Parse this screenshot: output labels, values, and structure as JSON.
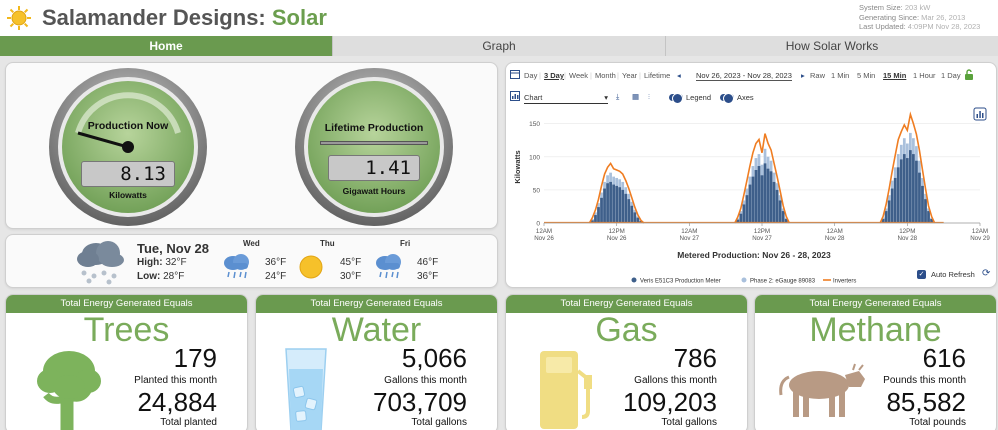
{
  "header": {
    "brand_main": "Salamander Designs:",
    "brand_accent": "Solar",
    "system_size_label": "System Size:",
    "system_size_value": "203 kW",
    "generating_since_label": "Generating Since:",
    "generating_since_value": "Mar 26, 2013",
    "last_updated_label": "Last Updated:",
    "last_updated_value": "4:09PM Nov 28, 2023",
    "icon": "sun-icon"
  },
  "tabs": [
    {
      "label": "Home",
      "active": true
    },
    {
      "label": "Graph",
      "active": false
    },
    {
      "label": "How Solar Works",
      "active": false
    }
  ],
  "gauges": {
    "production": {
      "title": "Production Now",
      "value": "8.13",
      "unit": "Kilowatts"
    },
    "lifetime": {
      "title": "Lifetime Production",
      "value": "1.41",
      "unit": "Gigawatt Hours"
    }
  },
  "weather": {
    "today": {
      "date": "Tue, Nov 28",
      "high_label": "High:",
      "high": "32°F",
      "low_label": "Low:",
      "low": "28°F",
      "icon": "snow-cloud-icon"
    },
    "days": [
      {
        "day": "Wed",
        "high": "36°F",
        "low": "24°F",
        "icon": "rain-cloud-icon"
      },
      {
        "day": "Thu",
        "high": "45°F",
        "low": "30°F",
        "icon": "sun-icon"
      },
      {
        "day": "Fri",
        "high": "46°F",
        "low": "36°F",
        "icon": "rain-cloud-icon"
      }
    ]
  },
  "chart_toolbar": {
    "ranges": [
      "Day",
      "3 Day",
      "Week",
      "Month",
      "Year",
      "Lifetime"
    ],
    "selected_range": "3 Day",
    "date_range": "Nov 26, 2023 - Nov 28, 2023",
    "intervals": [
      "Raw",
      "1 Min",
      "5 Min",
      "15 Min",
      "1 Hour",
      "1 Day"
    ],
    "selected_interval": "15 Min",
    "view_select": "Chart",
    "legend_toggle": "Legend",
    "axes_toggle": "Axes",
    "auto_refresh": "Auto Refresh"
  },
  "chart_data": {
    "type": "area",
    "title": "Metered Production: Nov 26 - 28, 2023",
    "ylabel": "Kilowatts",
    "ylim": [
      0,
      160
    ],
    "y_ticks": [
      0,
      50,
      100,
      150
    ],
    "x_ticks": [
      {
        "l1": "12AM",
        "l2": "Nov 26",
        "h": 0
      },
      {
        "l1": "12PM",
        "l2": "Nov 26",
        "h": 12
      },
      {
        "l1": "12AM",
        "l2": "Nov 27",
        "h": 24
      },
      {
        "l1": "12PM",
        "l2": "Nov 27",
        "h": 36
      },
      {
        "l1": "12AM",
        "l2": "Nov 28",
        "h": 48
      },
      {
        "l1": "12PM",
        "l2": "Nov 28",
        "h": 60
      },
      {
        "l1": "12AM",
        "l2": "Nov 29",
        "h": 72
      }
    ],
    "x_hours": [
      7.5,
      8,
      8.5,
      9,
      9.5,
      10,
      10.5,
      11,
      11.5,
      12,
      12.5,
      13,
      13.5,
      14,
      14.5,
      15,
      15.5,
      16,
      16.5,
      31.5,
      32,
      32.5,
      33,
      33.5,
      34,
      34.5,
      35,
      35.5,
      36,
      36.5,
      37,
      37.5,
      38,
      38.5,
      39,
      39.5,
      40,
      40.5,
      55.5,
      56,
      56.5,
      57,
      57.5,
      58,
      58.5,
      59,
      59.5,
      60,
      60.5,
      61,
      61.5,
      62,
      62.5,
      63,
      63.5,
      64,
      64.5
    ],
    "series": [
      {
        "name": "Veris E51C3 Production Meter",
        "color": "#3e5f8a",
        "values": [
          0,
          4,
          12,
          24,
          38,
          52,
          60,
          62,
          58,
          56,
          54,
          50,
          44,
          36,
          26,
          16,
          8,
          3,
          0,
          0,
          5,
          14,
          28,
          42,
          58,
          70,
          80,
          86,
          72,
          90,
          82,
          78,
          62,
          50,
          34,
          18,
          6,
          0,
          0,
          6,
          18,
          34,
          52,
          68,
          84,
          96,
          104,
          98,
          110,
          104,
          94,
          76,
          56,
          36,
          18,
          6,
          0
        ]
      },
      {
        "name": "Phase 2: eGauge 89083",
        "color": "#a9c0dc",
        "values": [
          0,
          6,
          16,
          30,
          46,
          62,
          72,
          76,
          70,
          68,
          66,
          62,
          54,
          44,
          32,
          20,
          10,
          4,
          0,
          0,
          7,
          18,
          34,
          52,
          70,
          86,
          98,
          104,
          88,
          112,
          100,
          94,
          76,
          60,
          42,
          22,
          8,
          0,
          0,
          8,
          22,
          42,
          64,
          84,
          104,
          118,
          128,
          120,
          136,
          128,
          116,
          94,
          68,
          44,
          22,
          8,
          0
        ]
      },
      {
        "name": "Inverters",
        "color": "#ef7d22",
        "values": [
          0,
          8,
          20,
          36,
          56,
          74,
          84,
          90,
          82,
          80,
          78,
          74,
          64,
          52,
          38,
          24,
          12,
          4,
          0,
          0,
          9,
          22,
          42,
          64,
          86,
          106,
          120,
          126,
          106,
          135,
          120,
          110,
          90,
          70,
          48,
          26,
          10,
          0,
          0,
          10,
          28,
          52,
          78,
          102,
          126,
          138,
          148,
          140,
          164,
          150,
          134,
          110,
          80,
          52,
          26,
          10,
          0
        ]
      }
    ],
    "legend_position": "bottom"
  },
  "cards": [
    {
      "header": "Total Energy Generated Equals",
      "title": "Trees",
      "month_value": "179",
      "month_label": "Planted this month",
      "total_value": "24,884",
      "total_label": "Total planted",
      "icon": "tree-icon"
    },
    {
      "header": "Total Energy Generated Equals",
      "title": "Water",
      "month_value": "5,066",
      "month_label": "Gallons this month",
      "total_value": "703,709",
      "total_label": "Total gallons",
      "icon": "water-glass-icon"
    },
    {
      "header": "Total Energy Generated Equals",
      "title": "Gas",
      "month_value": "786",
      "month_label": "Gallons this month",
      "total_value": "109,203",
      "total_label": "Total gallons",
      "icon": "gas-pump-icon"
    },
    {
      "header": "Total Energy Generated Equals",
      "title": "Methane",
      "month_value": "616",
      "month_label": "Pounds this month",
      "total_value": "85,582",
      "total_label": "Total pounds",
      "icon": "cow-icon"
    }
  ],
  "colors": {
    "brand_green": "#6a9a4f",
    "title_green": "#7aab5b",
    "inverters_orange": "#ef7d22"
  }
}
